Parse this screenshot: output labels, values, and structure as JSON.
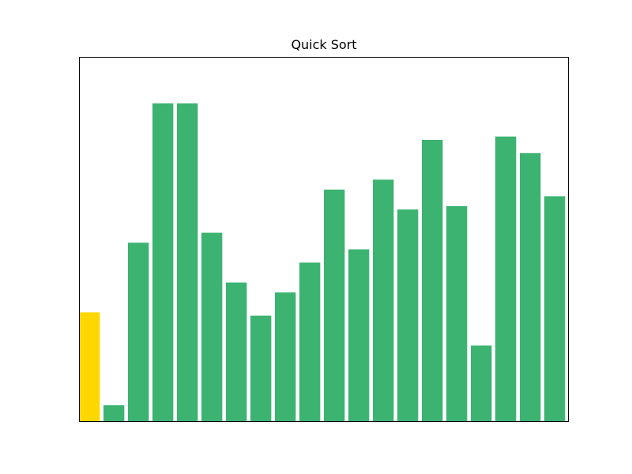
{
  "chart_data": {
    "type": "bar",
    "title": "Quick Sort",
    "xlabel": "",
    "ylabel": "",
    "values": [
      33,
      5,
      54,
      96,
      96,
      57,
      42,
      32,
      39,
      48,
      70,
      52,
      73,
      64,
      85,
      65,
      23,
      86,
      81,
      68
    ],
    "bar_colors": [
      "#ffd700",
      "#3cb371",
      "#3cb371",
      "#3cb371",
      "#3cb371",
      "#3cb371",
      "#3cb371",
      "#3cb371",
      "#3cb371",
      "#3cb371",
      "#3cb371",
      "#3cb371",
      "#3cb371",
      "#3cb371",
      "#3cb371",
      "#3cb371",
      "#3cb371",
      "#3cb371",
      "#3cb371",
      "#3cb371"
    ],
    "ylim": [
      0,
      110
    ],
    "grid": false,
    "axes_ticks_visible": false
  }
}
